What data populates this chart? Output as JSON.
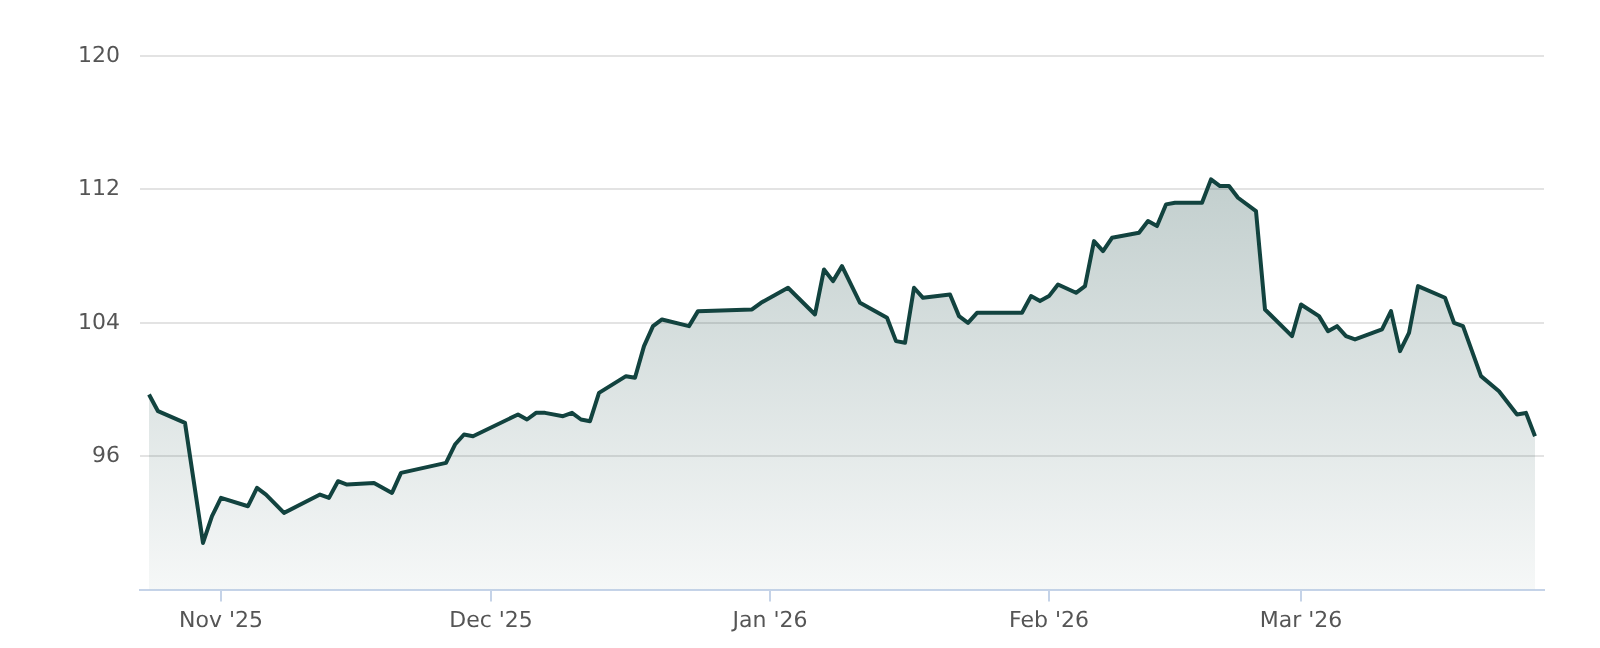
{
  "chart_data": {
    "type": "area",
    "x": [
      "2025-10-24",
      "2025-10-25",
      "2025-10-28",
      "2025-10-30",
      "2025-10-31",
      "2025-11-01",
      "2025-11-04",
      "2025-11-05",
      "2025-11-06",
      "2025-11-08",
      "2025-11-12",
      "2025-11-13",
      "2025-11-14",
      "2025-11-15",
      "2025-11-18",
      "2025-11-20",
      "2025-11-21",
      "2025-11-26",
      "2025-11-27",
      "2025-11-28",
      "2025-11-29",
      "2025-12-04",
      "2025-12-05",
      "2025-12-06",
      "2025-12-07",
      "2025-12-09",
      "2025-12-10",
      "2025-12-11",
      "2025-12-12",
      "2025-12-13",
      "2025-12-16",
      "2025-12-17",
      "2025-12-18",
      "2025-12-19",
      "2025-12-20",
      "2025-12-23",
      "2025-12-24",
      "2025-12-30",
      "2025-12-31",
      "2026-01-03",
      "2026-01-06",
      "2026-01-07",
      "2026-01-08",
      "2026-01-09",
      "2026-01-11",
      "2026-01-14",
      "2026-01-15",
      "2026-01-16",
      "2026-01-17",
      "2026-01-18",
      "2026-01-21",
      "2026-01-22",
      "2026-01-23",
      "2026-01-24",
      "2026-01-29",
      "2026-01-30",
      "2026-01-31",
      "2026-02-01",
      "2026-02-02",
      "2026-02-04",
      "2026-02-05",
      "2026-02-06",
      "2026-02-07",
      "2026-02-08",
      "2026-02-11",
      "2026-02-12",
      "2026-02-13",
      "2026-02-14",
      "2026-02-15",
      "2026-02-18",
      "2026-02-19",
      "2026-02-20",
      "2026-02-21",
      "2026-02-22",
      "2026-02-24",
      "2026-02-25",
      "2026-02-28",
      "2026-03-01",
      "2026-03-03",
      "2026-03-04",
      "2026-03-05",
      "2026-03-06",
      "2026-03-07",
      "2026-03-10",
      "2026-03-11",
      "2026-03-12",
      "2026-03-13",
      "2026-03-14",
      "2026-03-17",
      "2026-03-18",
      "2026-03-19",
      "2026-03-21",
      "2026-03-23",
      "2026-03-25",
      "2026-03-26",
      "2026-03-27"
    ],
    "series": [
      {
        "color": "#12433f",
        "values": [
          99.7,
          98.7,
          98.0,
          90.8,
          92.4,
          93.5,
          93.0,
          94.1,
          93.7,
          92.6,
          93.7,
          93.5,
          94.5,
          94.3,
          94.4,
          93.8,
          95.0,
          95.6,
          96.7,
          97.3,
          97.2,
          98.5,
          98.2,
          98.6,
          98.6,
          98.4,
          98.6,
          98.2,
          98.1,
          99.8,
          100.8,
          100.7,
          102.6,
          103.8,
          104.2,
          103.8,
          104.7,
          104.8,
          105.2,
          106.1,
          104.5,
          107.2,
          106.5,
          107.4,
          105.2,
          104.3,
          102.9,
          102.8,
          106.1,
          105.5,
          105.7,
          104.4,
          104.0,
          104.6,
          104.6,
          105.6,
          105.3,
          105.6,
          106.3,
          105.8,
          106.2,
          108.9,
          108.3,
          109.1,
          109.4,
          110.1,
          109.8,
          111.1,
          111.2,
          111.2,
          112.6,
          112.2,
          112.2,
          111.5,
          110.7,
          104.8,
          103.2,
          105.1,
          104.4,
          103.5,
          103.8,
          103.2,
          103.0,
          103.6,
          104.7,
          102.3,
          103.4,
          106.2,
          105.5,
          104.0,
          103.8,
          100.8,
          99.9,
          98.5,
          98.6,
          97.2
        ]
      }
    ],
    "xlim": [
      "2025-10-23",
      "2026-03-28"
    ],
    "xticks": [
      {
        "value": "2025-11-01",
        "label": "Nov '25"
      },
      {
        "value": "2025-12-01",
        "label": "Dec '25"
      },
      {
        "value": "2026-01-01",
        "label": "Jan '26"
      },
      {
        "value": "2026-02-01",
        "label": "Feb '26"
      },
      {
        "value": "2026-03-01",
        "label": "Mar '26"
      }
    ],
    "ylim": [
      88,
      120
    ],
    "yticks": [
      96,
      104,
      112,
      120
    ],
    "grid": "y",
    "legend": false,
    "marker": "none",
    "line_style": "solid"
  }
}
